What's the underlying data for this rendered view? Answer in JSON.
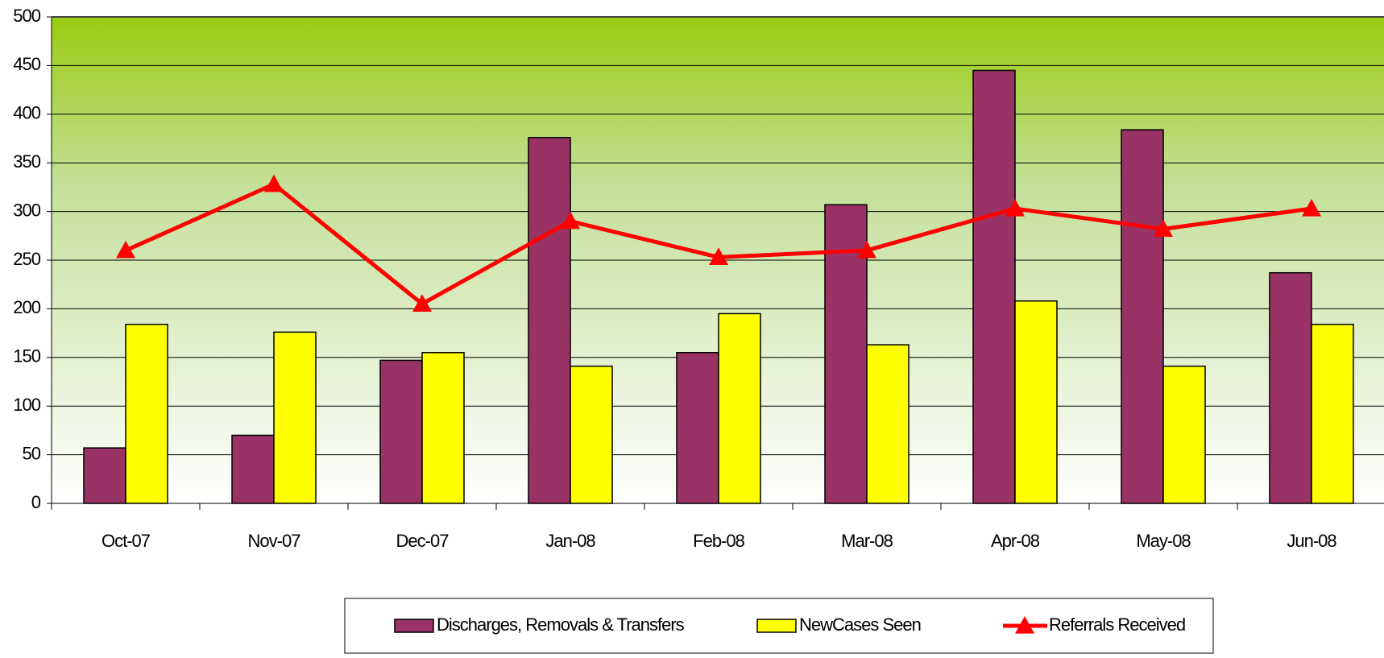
{
  "chart_data": {
    "type": "bar_line",
    "categories": [
      "Oct-07",
      "Nov-07",
      "Dec-07",
      "Jan-08",
      "Feb-08",
      "Mar-08",
      "Apr-08",
      "May-08",
      "Jun-08"
    ],
    "series": [
      {
        "name": "Discharges, Removals & Transfers",
        "type": "bar",
        "color": "#993366",
        "values": [
          57,
          70,
          147,
          376,
          155,
          307,
          445,
          384,
          237
        ]
      },
      {
        "name": "NewCases Seen",
        "type": "bar",
        "color": "#ffff00",
        "values": [
          184,
          176,
          155,
          141,
          195,
          163,
          208,
          141,
          184
        ]
      },
      {
        "name": "Referrals Received",
        "type": "line",
        "color": "#ff0000",
        "values": [
          260,
          328,
          205,
          290,
          253,
          260,
          303,
          282,
          303
        ]
      }
    ],
    "ylim": [
      0,
      500
    ],
    "yticks": [
      0,
      50,
      100,
      150,
      200,
      250,
      300,
      350,
      400,
      450,
      500
    ],
    "grid": true
  }
}
